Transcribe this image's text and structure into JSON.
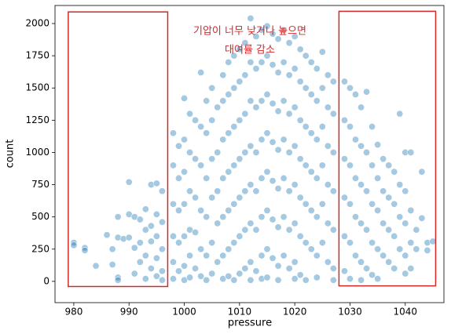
{
  "chart_data": {
    "type": "scatter",
    "xlabel": "pressure",
    "ylabel": "count",
    "annotation": [
      "기압이 너무 낮거나 높으면",
      "대여률 감소"
    ],
    "annotation_color": "#d62728",
    "regions": [
      {
        "x": [
          979,
          997
        ],
        "y": [
          -40,
          2090
        ]
      },
      {
        "x": [
          1028,
          1045.5
        ],
        "y": [
          -35,
          2095
        ]
      }
    ],
    "xlim": [
      976.6,
      1047
    ],
    "ylim": [
      -165,
      2140
    ],
    "xticks": [
      980,
      990,
      1000,
      1010,
      1020,
      1030,
      1040
    ],
    "yticks": [
      0,
      250,
      500,
      750,
      1000,
      1250,
      1500,
      1750,
      2000
    ],
    "series": [
      {
        "color": "#1f77b4",
        "x": [
          980,
          980,
          982,
          982,
          984,
          986,
          987,
          987,
          988,
          988,
          988,
          988,
          989,
          990,
          990,
          990,
          991,
          991,
          991,
          992,
          992,
          992,
          993,
          993,
          993,
          993,
          994,
          994,
          994,
          994,
          995,
          995,
          995,
          995,
          995,
          996,
          996,
          996,
          996,
          996,
          998,
          998,
          998,
          998,
          998,
          998,
          999,
          999,
          999,
          999,
          999,
          1000,
          1000,
          1000,
          1000,
          1000,
          1000,
          1000,
          1001,
          1001,
          1001,
          1001,
          1001,
          1001,
          1002,
          1002,
          1002,
          1002,
          1002,
          1003,
          1003,
          1003,
          1003,
          1003,
          1003,
          1004,
          1004,
          1004,
          1004,
          1004,
          1004,
          1005,
          1005,
          1005,
          1005,
          1005,
          1005,
          1006,
          1006,
          1006,
          1006,
          1006,
          1007,
          1007,
          1007,
          1007,
          1007,
          1007,
          1007,
          1008,
          1008,
          1008,
          1008,
          1008,
          1008,
          1008,
          1009,
          1009,
          1009,
          1009,
          1009,
          1009,
          1009,
          1010,
          1010,
          1010,
          1010,
          1010,
          1010,
          1010,
          1011,
          1011,
          1011,
          1011,
          1011,
          1011,
          1011,
          1012,
          1012,
          1012,
          1012,
          1012,
          1012,
          1012,
          1012,
          1013,
          1013,
          1013,
          1013,
          1013,
          1013,
          1013,
          1014,
          1014,
          1014,
          1014,
          1014,
          1014,
          1014,
          1014,
          1015,
          1015,
          1015,
          1015,
          1015,
          1015,
          1015,
          1015,
          1016,
          1016,
          1016,
          1016,
          1016,
          1016,
          1016,
          1017,
          1017,
          1017,
          1017,
          1017,
          1017,
          1017,
          1017,
          1018,
          1018,
          1018,
          1018,
          1018,
          1018,
          1018,
          1019,
          1019,
          1019,
          1019,
          1019,
          1019,
          1019,
          1020,
          1020,
          1020,
          1020,
          1020,
          1020,
          1020,
          1020,
          1021,
          1021,
          1021,
          1021,
          1021,
          1021,
          1021,
          1022,
          1022,
          1022,
          1022,
          1022,
          1022,
          1022,
          1023,
          1023,
          1023,
          1023,
          1023,
          1023,
          1024,
          1024,
          1024,
          1024,
          1024,
          1024,
          1024,
          1025,
          1025,
          1025,
          1025,
          1025,
          1025,
          1026,
          1026,
          1026,
          1026,
          1026,
          1026,
          1027,
          1027,
          1027,
          1027,
          1027,
          1027,
          1027,
          1029,
          1029,
          1029,
          1029,
          1029,
          1029,
          1030,
          1030,
          1030,
          1030,
          1030,
          1030,
          1031,
          1031,
          1031,
          1031,
          1031,
          1032,
          1032,
          1032,
          1032,
          1032,
          1032,
          1033,
          1033,
          1033,
          1033,
          1033,
          1034,
          1034,
          1034,
          1034,
          1034,
          1035,
          1035,
          1035,
          1035,
          1035,
          1036,
          1036,
          1036,
          1036,
          1037,
          1037,
          1037,
          1037,
          1038,
          1038,
          1038,
          1038,
          1039,
          1039,
          1039,
          1039,
          1040,
          1040,
          1040,
          1040,
          1040,
          1041,
          1041,
          1041,
          1041,
          1042,
          1042,
          1043,
          1043,
          1044,
          1044,
          1045
        ],
        "values": [
          300,
          280,
          260,
          240,
          120,
          360,
          250,
          130,
          500,
          340,
          30,
          10,
          330,
          770,
          340,
          520,
          500,
          260,
          60,
          480,
          300,
          150,
          560,
          400,
          200,
          20,
          750,
          430,
          310,
          100,
          760,
          520,
          350,
          180,
          40,
          700,
          460,
          250,
          80,
          10,
          1150,
          900,
          600,
          350,
          150,
          20,
          1050,
          800,
          550,
          300,
          80,
          1420,
          1100,
          850,
          600,
          350,
          120,
          10,
          1300,
          1000,
          700,
          400,
          200,
          30,
          1250,
          950,
          650,
          380,
          100,
          1620,
          1200,
          900,
          550,
          250,
          40,
          1400,
          1150,
          800,
          500,
          200,
          10,
          1500,
          1250,
          950,
          650,
          300,
          60,
          1350,
          1000,
          700,
          450,
          150,
          1600,
          1400,
          1100,
          800,
          500,
          200,
          20,
          1700,
          1450,
          1150,
          850,
          550,
          250,
          40,
          1750,
          1500,
          1200,
          900,
          600,
          300,
          10,
          1800,
          1550,
          1250,
          950,
          650,
          350,
          60,
          1850,
          1600,
          1300,
          1000,
          700,
          400,
          100,
          2040,
          1700,
          1400,
          1050,
          750,
          450,
          150,
          10,
          1900,
          1650,
          1350,
          1000,
          700,
          400,
          80,
          1950,
          1700,
          1400,
          1100,
          800,
          500,
          200,
          20,
          1980,
          1750,
          1450,
          1150,
          850,
          550,
          250,
          30,
          1920,
          1680,
          1380,
          1080,
          780,
          480,
          180,
          1880,
          1620,
          1320,
          1020,
          720,
          420,
          120,
          10,
          1950,
          1700,
          1400,
          1100,
          800,
          500,
          200,
          1850,
          1600,
          1300,
          1000,
          700,
          400,
          100,
          1900,
          1650,
          1350,
          1050,
          750,
          450,
          150,
          20,
          1800,
          1550,
          1250,
          950,
          650,
          350,
          50,
          1750,
          1500,
          1200,
          900,
          600,
          300,
          10,
          1700,
          1450,
          1150,
          850,
          550,
          250,
          1650,
          1400,
          1100,
          800,
          500,
          200,
          30,
          1780,
          1500,
          1200,
          900,
          600,
          300,
          1600,
          1350,
          1050,
          750,
          450,
          150,
          1550,
          1300,
          1000,
          700,
          400,
          100,
          10,
          1550,
          1250,
          950,
          650,
          350,
          80,
          1500,
          1200,
          900,
          600,
          300,
          20,
          1450,
          1100,
          800,
          500,
          200,
          1350,
          1050,
          750,
          450,
          150,
          10,
          1470,
          1000,
          700,
          400,
          100,
          1200,
          900,
          600,
          300,
          50,
          1060,
          800,
          550,
          250,
          20,
          950,
          700,
          450,
          200,
          900,
          650,
          400,
          150,
          850,
          600,
          350,
          100,
          1300,
          750,
          500,
          250,
          1000,
          700,
          450,
          200,
          60,
          1000,
          550,
          300,
          100,
          250,
          400,
          850,
          490,
          300,
          240,
          310
        ]
      }
    ]
  }
}
